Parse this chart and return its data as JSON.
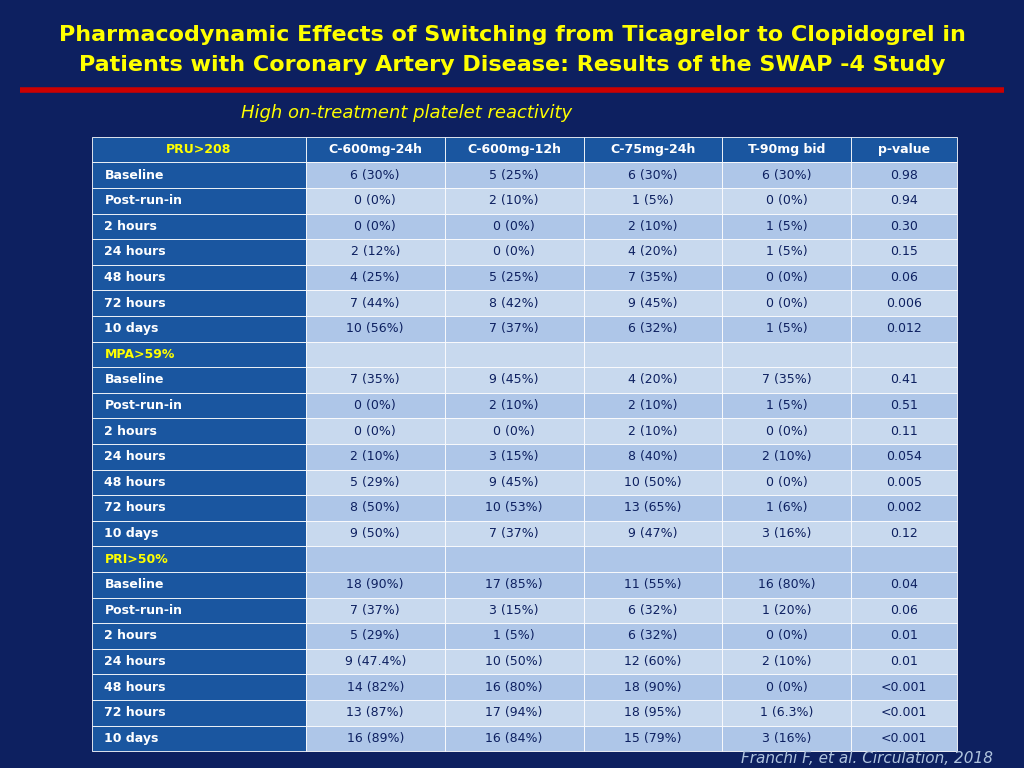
{
  "title_line1": "Pharmacodynamic Effects of Switching from Ticagrelor to Clopidogrel in",
  "title_line2": "Patients with Coronary Artery Disease: Results of the SWAP -4 Study",
  "subtitle": "High on-treatment platelet reactivity",
  "footnote": "Franchi F, et al. Circulation, 2018",
  "bg_color": "#0d2060",
  "title_color": "#ffff00",
  "subtitle_color": "#ffff00",
  "red_line_color": "#cc0000",
  "footnote_color": "#b0c4de",
  "col_headers": [
    "PRU>208",
    "C-600mg-24h",
    "C-600mg-12h",
    "C-75mg-24h",
    "T-90mg bid",
    "p-value"
  ],
  "header_bg": "#1a56a0",
  "header_text_color_first": "#ffff00",
  "header_text_color_rest": "#ffffff",
  "row_label_bg": "#1a56a0",
  "row_label_text": "#ffffff",
  "data_bg_odd": "#aec6e8",
  "data_bg_even": "#c8d9ee",
  "data_text": "#0d2060",
  "section_bg": "#1a56a0",
  "section_text": "#ffff00",
  "rows": [
    [
      "Baseline",
      "6 (30%)",
      "5 (25%)",
      "6 (30%)",
      "6 (30%)",
      "0.98"
    ],
    [
      "Post-run-in",
      "0 (0%)",
      "2 (10%)",
      "1 (5%)",
      "0 (0%)",
      "0.94"
    ],
    [
      "2 hours",
      "0 (0%)",
      "0 (0%)",
      "2 (10%)",
      "1 (5%)",
      "0.30"
    ],
    [
      "24 hours",
      "2 (12%)",
      "0 (0%)",
      "4 (20%)",
      "1 (5%)",
      "0.15"
    ],
    [
      "48 hours",
      "4 (25%)",
      "5 (25%)",
      "7 (35%)",
      "0 (0%)",
      "0.06"
    ],
    [
      "72 hours",
      "7 (44%)",
      "8 (42%)",
      "9 (45%)",
      "0 (0%)",
      "0.006"
    ],
    [
      "10 days",
      "10 (56%)",
      "7 (37%)",
      "6 (32%)",
      "1 (5%)",
      "0.012"
    ],
    [
      "MPA>59%",
      "",
      "",
      "",
      "",
      ""
    ],
    [
      "Baseline",
      "7 (35%)",
      "9 (45%)",
      "4 (20%)",
      "7 (35%)",
      "0.41"
    ],
    [
      "Post-run-in",
      "0 (0%)",
      "2 (10%)",
      "2 (10%)",
      "1 (5%)",
      "0.51"
    ],
    [
      "2 hours",
      "0 (0%)",
      "0 (0%)",
      "2 (10%)",
      "0 (0%)",
      "0.11"
    ],
    [
      "24 hours",
      "2 (10%)",
      "3 (15%)",
      "8 (40%)",
      "2 (10%)",
      "0.054"
    ],
    [
      "48 hours",
      "5 (29%)",
      "9 (45%)",
      "10 (50%)",
      "0 (0%)",
      "0.005"
    ],
    [
      "72 hours",
      "8 (50%)",
      "10 (53%)",
      "13 (65%)",
      "1 (6%)",
      "0.002"
    ],
    [
      "10 days",
      "9 (50%)",
      "7 (37%)",
      "9 (47%)",
      "3 (16%)",
      "0.12"
    ],
    [
      "PRI>50%",
      "",
      "",
      "",
      "",
      ""
    ],
    [
      "Baseline",
      "18 (90%)",
      "17 (85%)",
      "11 (55%)",
      "16 (80%)",
      "0.04"
    ],
    [
      "Post-run-in",
      "7 (37%)",
      "3 (15%)",
      "6 (32%)",
      "1 (20%)",
      "0.06"
    ],
    [
      "2 hours",
      "5 (29%)",
      "1 (5%)",
      "6 (32%)",
      "0 (0%)",
      "0.01"
    ],
    [
      "24 hours",
      "9 (47.4%)",
      "10 (50%)",
      "12 (60%)",
      "2 (10%)",
      "0.01"
    ],
    [
      "48 hours",
      "14 (82%)",
      "16 (80%)",
      "18 (90%)",
      "0 (0%)",
      "<0.001"
    ],
    [
      "72 hours",
      "13 (87%)",
      "17 (94%)",
      "18 (95%)",
      "1 (6.3%)",
      "<0.001"
    ],
    [
      "10 days",
      "16 (89%)",
      "16 (84%)",
      "15 (79%)",
      "3 (16%)",
      "<0.001"
    ]
  ]
}
